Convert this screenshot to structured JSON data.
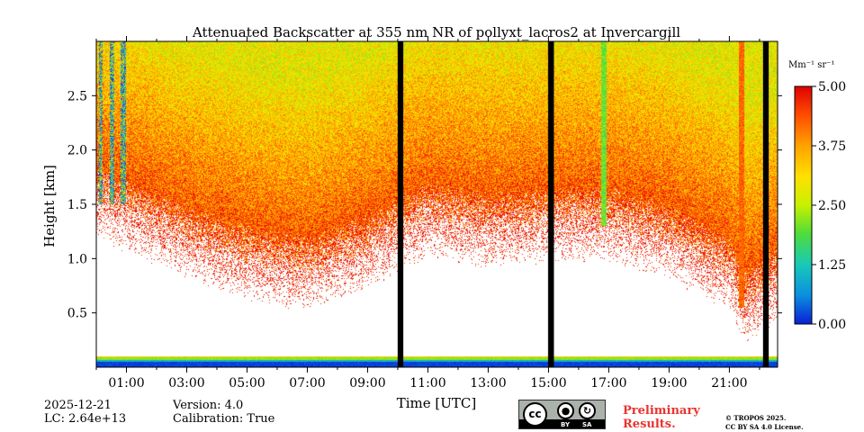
{
  "chart_data": {
    "type": "heatmap",
    "title": "Attenuated Backscatter at 355 nm NR of pollyxt_lacros2 at Invercargill",
    "xlabel": "Time [UTC]",
    "ylabel": "Height [km]",
    "xlim_hours": [
      0.0,
      22.6
    ],
    "ylim_km": [
      0.0,
      3.0
    ],
    "x_ticks": [
      {
        "hour": 1,
        "label": "01:00"
      },
      {
        "hour": 3,
        "label": "03:00"
      },
      {
        "hour": 5,
        "label": "05:00"
      },
      {
        "hour": 7,
        "label": "07:00"
      },
      {
        "hour": 9,
        "label": "09:00"
      },
      {
        "hour": 11,
        "label": "11:00"
      },
      {
        "hour": 13,
        "label": "13:00"
      },
      {
        "hour": 15,
        "label": "15:00"
      },
      {
        "hour": 17,
        "label": "17:00"
      },
      {
        "hour": 19,
        "label": "19:00"
      },
      {
        "hour": 21,
        "label": "21:00"
      }
    ],
    "y_ticks": [
      {
        "value": 0.5,
        "label": "0.5"
      },
      {
        "value": 1.0,
        "label": "1.0"
      },
      {
        "value": 1.5,
        "label": "1.5"
      },
      {
        "value": 2.0,
        "label": "2.0"
      },
      {
        "value": 2.5,
        "label": "2.5"
      }
    ],
    "colorbar": {
      "unit_label": "Mm⁻¹ sr⁻¹",
      "range": [
        0.0,
        5.0
      ],
      "ticks": [
        {
          "value": 0.0,
          "label": "0.00"
        },
        {
          "value": 1.25,
          "label": "1.25"
        },
        {
          "value": 2.5,
          "label": "2.50"
        },
        {
          "value": 3.75,
          "label": "3.75"
        },
        {
          "value": 5.0,
          "label": "5.00"
        }
      ],
      "colormap": [
        "#0b1fd6",
        "#0a8fe0",
        "#18c9b8",
        "#4fdc3a",
        "#c8f000",
        "#ffe100",
        "#ffa200",
        "#ff4c00",
        "#e00000"
      ]
    },
    "no_data_gaps_hours": [
      [
        10.0,
        10.18
      ],
      [
        15.0,
        15.18
      ],
      [
        22.12,
        22.3
      ]
    ],
    "aerosol_layer_base_km": [
      {
        "hour": 0.0,
        "km": 1.5
      },
      {
        "hour": 1.0,
        "km": 1.4
      },
      {
        "hour": 3.0,
        "km": 1.15
      },
      {
        "hour": 5.0,
        "km": 0.95
      },
      {
        "hour": 7.0,
        "km": 0.85
      },
      {
        "hour": 9.0,
        "km": 1.05
      },
      {
        "hour": 10.0,
        "km": 1.2
      },
      {
        "hour": 11.0,
        "km": 1.35
      },
      {
        "hour": 13.0,
        "km": 1.25
      },
      {
        "hour": 15.0,
        "km": 1.3
      },
      {
        "hour": 17.0,
        "km": 1.3
      },
      {
        "hour": 19.0,
        "km": 1.15
      },
      {
        "hour": 21.0,
        "km": 0.85
      },
      {
        "hour": 21.5,
        "km": 0.55
      },
      {
        "hour": 22.6,
        "km": 0.75
      }
    ],
    "low_signal_streaks_hours": [
      [
        0.1,
        0.2
      ],
      [
        0.45,
        0.6
      ],
      [
        0.8,
        1.0
      ]
    ],
    "noted_features": [
      {
        "hour": 16.85,
        "from_km": 1.3,
        "to_km": 3.0,
        "value": 2.0
      },
      {
        "hour": 21.4,
        "from_km": 0.55,
        "to_km": 3.0,
        "value": 4.2
      }
    ],
    "surface_layers_km": [
      {
        "from": 0.0,
        "to": 0.05,
        "value": 0.2
      },
      {
        "from": 0.05,
        "to": 0.07,
        "value": 1.0
      },
      {
        "from": 0.07,
        "to": 0.09,
        "value": 2.2
      },
      {
        "from": 0.09,
        "to": 0.1,
        "value": 3.4
      }
    ]
  },
  "footer": {
    "date": "2025-12-21",
    "lc": "LC: 2.64e+13",
    "version": "Version: 4.0",
    "calibration": "Calibration: True",
    "preliminary_line1": "Preliminary",
    "preliminary_line2": "Results.",
    "license_line1": "© TROPOS 2025.",
    "license_line2": "CC BY SA 4.0 License."
  },
  "license_badge": {
    "cc": "cc",
    "by": "BY",
    "sa": "SA"
  }
}
